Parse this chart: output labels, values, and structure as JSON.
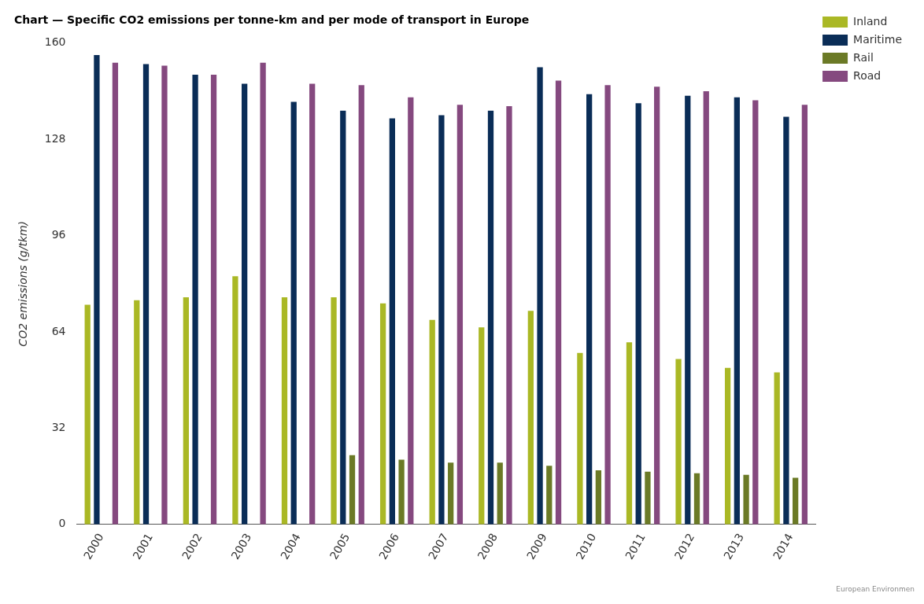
{
  "chart_data": {
    "type": "bar",
    "title": "Chart — Specific CO2 emissions per tonne-km and per mode of transport in Europe",
    "ylabel": "CO2 emissions (g/tkm)",
    "categories": [
      "2000",
      "2001",
      "2002",
      "2003",
      "2004",
      "2005",
      "2006",
      "2007",
      "2008",
      "2009",
      "2010",
      "2011",
      "2012",
      "2013",
      "2014"
    ],
    "series": [
      {
        "name": "Inland",
        "color": "#aab825",
        "values": [
          73,
          74.5,
          75.5,
          82.5,
          75.5,
          75.5,
          73.5,
          68,
          65.5,
          71,
          57,
          60.5,
          55,
          52,
          50.5
        ]
      },
      {
        "name": "Maritime",
        "color": "#0a2d57",
        "values": [
          156,
          153,
          149.5,
          146.5,
          140.5,
          137.5,
          135,
          136,
          137.5,
          152,
          143,
          140,
          142.5,
          142,
          135.5
        ]
      },
      {
        "name": "Rail",
        "color": "#6b7a26",
        "values": [
          null,
          null,
          null,
          null,
          null,
          23,
          21.5,
          20.5,
          20.5,
          19.5,
          18,
          17.5,
          17,
          16.5,
          15.5
        ]
      },
      {
        "name": "Road",
        "color": "#85497f",
        "values": [
          153.5,
          152.5,
          149.5,
          153.5,
          146.5,
          146,
          142,
          139.5,
          139,
          147.5,
          146,
          145.5,
          144,
          141,
          139.5
        ]
      }
    ],
    "ylim": [
      0,
      160
    ],
    "yticks": [
      0,
      32,
      64,
      96,
      128,
      160
    ],
    "grid": false,
    "legend": "top right",
    "annotations": [
      "European Environmen"
    ]
  }
}
